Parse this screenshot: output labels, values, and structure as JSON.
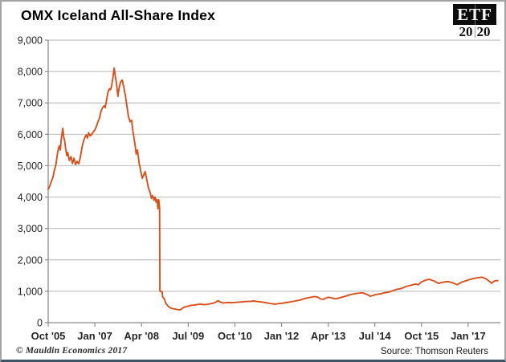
{
  "header": {
    "title": "OMX Iceland All-Share Index",
    "logo": {
      "top": "ETF",
      "bottom_left": "20",
      "bottom_right": "20"
    }
  },
  "footer": {
    "copyright": "© Mauldin Economics 2017",
    "source": "Source: Thomson Reuters"
  },
  "colors": {
    "line": "#D9501C",
    "grid": "#c3c3c3",
    "axis": "#8c8c8c",
    "tick_text": "#262626",
    "border": "#a3a3a3",
    "bottom_bar": "#3f5566"
  },
  "chart_data": {
    "type": "line",
    "title": "OMX Iceland All-Share Index",
    "xlabel": "",
    "ylabel": "",
    "x_unit": "months since Oct 2005",
    "ylim": [
      0,
      9000
    ],
    "grid": "horizontal",
    "legend": "none",
    "line_color": "#D9501C",
    "xticks": [
      {
        "label": "Oct '05",
        "m": 0
      },
      {
        "label": "Jan '07",
        "m": 15
      },
      {
        "label": "Apr '08",
        "m": 30
      },
      {
        "label": "Jul '09",
        "m": 45
      },
      {
        "label": "Oct '10",
        "m": 60
      },
      {
        "label": "Jan '12",
        "m": 75
      },
      {
        "label": "Apr '13",
        "m": 90
      },
      {
        "label": "Jul '14",
        "m": 105
      },
      {
        "label": "Oct '15",
        "m": 120
      },
      {
        "label": "Jan '17",
        "m": 135
      }
    ],
    "yticks": [
      {
        "v": 0,
        "label": "0"
      },
      {
        "v": 1000,
        "label": "1,000"
      },
      {
        "v": 2000,
        "label": "2,000"
      },
      {
        "v": 3000,
        "label": "3,000"
      },
      {
        "v": 4000,
        "label": "4,000"
      },
      {
        "v": 5000,
        "label": "5,000"
      },
      {
        "v": 6000,
        "label": "6,000"
      },
      {
        "v": 7000,
        "label": "7,000"
      },
      {
        "v": 8000,
        "label": "8,000"
      },
      {
        "v": 9000,
        "label": "9,000"
      }
    ],
    "series": [
      {
        "name": "OMX Iceland All-Share Index",
        "points": [
          [
            0,
            4250
          ],
          [
            0.5,
            4350
          ],
          [
            1,
            4500
          ],
          [
            1.5,
            4620
          ],
          [
            2,
            4850
          ],
          [
            2.5,
            5050
          ],
          [
            3,
            5400
          ],
          [
            3.3,
            5560
          ],
          [
            3.6,
            5630
          ],
          [
            3.9,
            5500
          ],
          [
            4.2,
            5850
          ],
          [
            4.7,
            6190
          ],
          [
            5,
            5900
          ],
          [
            5.3,
            5800
          ],
          [
            5.6,
            5550
          ],
          [
            6,
            5320
          ],
          [
            6.3,
            5420
          ],
          [
            6.8,
            5170
          ],
          [
            7.3,
            5290
          ],
          [
            7.8,
            5070
          ],
          [
            8.3,
            5240
          ],
          [
            8.8,
            5040
          ],
          [
            9.3,
            5140
          ],
          [
            9.8,
            5060
          ],
          [
            10.3,
            5250
          ],
          [
            10.9,
            5600
          ],
          [
            11.4,
            5800
          ],
          [
            11.8,
            5900
          ],
          [
            12.2,
            5980
          ],
          [
            12.6,
            5880
          ],
          [
            13,
            6050
          ],
          [
            13.5,
            5950
          ],
          [
            14,
            6000
          ],
          [
            14.5,
            6080
          ],
          [
            15,
            6140
          ],
          [
            15.5,
            6250
          ],
          [
            16,
            6400
          ],
          [
            16.5,
            6520
          ],
          [
            17,
            6740
          ],
          [
            17.5,
            6850
          ],
          [
            18,
            6910
          ],
          [
            18.3,
            6850
          ],
          [
            18.7,
            7050
          ],
          [
            19.2,
            7340
          ],
          [
            19.7,
            7450
          ],
          [
            20,
            7420
          ],
          [
            20.4,
            7550
          ],
          [
            20.8,
            7800
          ],
          [
            21.2,
            8110
          ],
          [
            21.6,
            7830
          ],
          [
            22,
            7600
          ],
          [
            22.4,
            7210
          ],
          [
            22.8,
            7480
          ],
          [
            23.3,
            7670
          ],
          [
            23.8,
            7730
          ],
          [
            24.3,
            7500
          ],
          [
            24.8,
            7240
          ],
          [
            25.3,
            6900
          ],
          [
            25.8,
            6570
          ],
          [
            26.3,
            6400
          ],
          [
            26.8,
            6450
          ],
          [
            27.3,
            6060
          ],
          [
            27.8,
            5750
          ],
          [
            28.3,
            5370
          ],
          [
            28.7,
            5500
          ],
          [
            29.2,
            5100
          ],
          [
            29.7,
            4860
          ],
          [
            30.2,
            4600
          ],
          [
            30.7,
            4700
          ],
          [
            31.2,
            4810
          ],
          [
            31.7,
            4550
          ],
          [
            32.2,
            4300
          ],
          [
            32.7,
            4170
          ],
          [
            33.2,
            3960
          ],
          [
            33.6,
            4050
          ],
          [
            34,
            3900
          ],
          [
            34.4,
            4000
          ],
          [
            34.7,
            3840
          ],
          [
            35,
            3920
          ],
          [
            35.3,
            3630
          ],
          [
            35.55,
            3915
          ],
          [
            35.8,
            3650
          ],
          [
            35.9,
            1010
          ],
          [
            36.3,
            990
          ],
          [
            36.6,
            985
          ],
          [
            36.8,
            820
          ],
          [
            37.3,
            760
          ],
          [
            37.8,
            620
          ],
          [
            38.3,
            560
          ],
          [
            38.8,
            500
          ],
          [
            39.3,
            470
          ],
          [
            40,
            450
          ],
          [
            41,
            430
          ],
          [
            42,
            410
          ],
          [
            42.6,
            415
          ],
          [
            43.3,
            470
          ],
          [
            44,
            500
          ],
          [
            45,
            530
          ],
          [
            46,
            555
          ],
          [
            47,
            560
          ],
          [
            48,
            580
          ],
          [
            49,
            590
          ],
          [
            50,
            575
          ],
          [
            51,
            580
          ],
          [
            52,
            600
          ],
          [
            53,
            620
          ],
          [
            54,
            660
          ],
          [
            54.5,
            700
          ],
          [
            55.5,
            650
          ],
          [
            56.5,
            630
          ],
          [
            57.5,
            645
          ],
          [
            58.5,
            640
          ],
          [
            60,
            645
          ],
          [
            61,
            655
          ],
          [
            62,
            660
          ],
          [
            63,
            670
          ],
          [
            64,
            675
          ],
          [
            65,
            680
          ],
          [
            66,
            690
          ],
          [
            67.5,
            670
          ],
          [
            69,
            655
          ],
          [
            70.5,
            630
          ],
          [
            72,
            600
          ],
          [
            73,
            590
          ],
          [
            74,
            605
          ],
          [
            75,
            615
          ],
          [
            76.5,
            640
          ],
          [
            78,
            665
          ],
          [
            79.5,
            690
          ],
          [
            81,
            720
          ],
          [
            82.5,
            770
          ],
          [
            84,
            800
          ],
          [
            85.5,
            830
          ],
          [
            86.5,
            820
          ],
          [
            87.5,
            760
          ],
          [
            88.5,
            745
          ],
          [
            90,
            810
          ],
          [
            91,
            790
          ],
          [
            92.5,
            760
          ],
          [
            94,
            800
          ],
          [
            95.5,
            840
          ],
          [
            97,
            890
          ],
          [
            98.5,
            920
          ],
          [
            100,
            940
          ],
          [
            101,
            950
          ],
          [
            102.5,
            900
          ],
          [
            103.5,
            845
          ],
          [
            104.5,
            870
          ],
          [
            105,
            890
          ],
          [
            107,
            920
          ],
          [
            108,
            950
          ],
          [
            109.5,
            975
          ],
          [
            110.5,
            1010
          ],
          [
            112,
            1060
          ],
          [
            113.5,
            1090
          ],
          [
            115,
            1150
          ],
          [
            116.5,
            1190
          ],
          [
            118,
            1230
          ],
          [
            119,
            1210
          ],
          [
            120,
            1300
          ],
          [
            121.5,
            1360
          ],
          [
            122.5,
            1380
          ],
          [
            124,
            1330
          ],
          [
            125.5,
            1250
          ],
          [
            127,
            1290
          ],
          [
            128.5,
            1310
          ],
          [
            130,
            1270
          ],
          [
            131.5,
            1210
          ],
          [
            133,
            1290
          ],
          [
            135,
            1360
          ],
          [
            136.5,
            1400
          ],
          [
            138,
            1430
          ],
          [
            139.5,
            1450
          ],
          [
            141,
            1380
          ],
          [
            142.5,
            1260
          ],
          [
            143.5,
            1330
          ],
          [
            144.5,
            1340
          ]
        ]
      }
    ]
  }
}
